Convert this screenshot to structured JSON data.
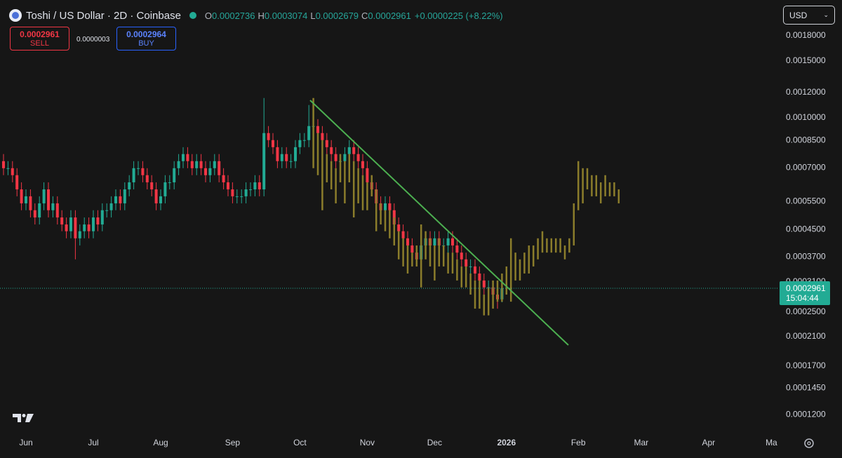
{
  "header": {
    "symbol": "Toshi / US Dollar · 2D · Coinbase",
    "o": "O",
    "h": "H",
    "l": "L",
    "c": "C",
    "change": "+0.0000225 (+8.22%)",
    "sell_price": "0.0002961",
    "sell": "SELL",
    "spread": "0.0000003",
    "buy_price": "0.0002964",
    "buy": "BUY",
    "currency": "USD",
    "countdown": "15:04:44"
  },
  "chart_data": {
    "type": "candlestick",
    "log_scale": true,
    "grid": false,
    "up_color": "#22ab94",
    "down_color": "#f23645",
    "projection_color": "#8b7d2b",
    "ylim": [
      0.000105,
      0.00232
    ],
    "yticks": [
      {
        "value": 0.0018,
        "label": "0.0018000"
      },
      {
        "value": 0.0015,
        "label": "0.0015000"
      },
      {
        "value": 0.0012,
        "label": "0.0012000"
      },
      {
        "value": 0.001,
        "label": "0.0010000"
      },
      {
        "value": 0.00085,
        "label": "0.0008500"
      },
      {
        "value": 0.0007,
        "label": "0.0007000"
      },
      {
        "value": 0.00055,
        "label": "0.0005500"
      },
      {
        "value": 0.00045,
        "label": "0.0004500"
      },
      {
        "value": 0.00037,
        "label": "0.0003700"
      },
      {
        "value": 0.00031,
        "label": "0.0003100"
      },
      {
        "value": 0.00025,
        "label": "0.0002500"
      },
      {
        "value": 0.00021,
        "label": "0.0002100"
      },
      {
        "value": 0.00017,
        "label": "0.0001700"
      },
      {
        "value": 0.000145,
        "label": "0.0001450"
      },
      {
        "value": 0.00012,
        "label": "0.0001200"
      }
    ],
    "categories": [
      null,
      null,
      null,
      null,
      null,
      "Jun",
      null,
      null,
      null,
      null,
      null,
      null,
      null,
      null,
      null,
      null,
      null,
      null,
      null,
      null,
      "Jul",
      null,
      null,
      null,
      null,
      null,
      null,
      null,
      null,
      null,
      null,
      null,
      null,
      null,
      null,
      "Aug",
      null,
      null,
      null,
      null,
      null,
      null,
      null,
      null,
      null,
      null,
      null,
      null,
      null,
      null,
      null,
      "Sep",
      null,
      null,
      null,
      null,
      null,
      null,
      null,
      null,
      null,
      null,
      null,
      null,
      null,
      null,
      "Oct",
      null,
      null,
      null,
      null,
      null,
      null,
      null,
      null,
      null,
      null,
      null,
      null,
      null,
      null,
      "Nov",
      null,
      null,
      null,
      null,
      null,
      null,
      null,
      null,
      null,
      null,
      null,
      null,
      null,
      null,
      "Dec",
      null,
      null,
      null,
      null,
      null,
      null,
      null,
      null,
      null,
      null,
      null,
      null,
      null,
      null,
      null,
      "2026",
      null,
      null,
      null,
      null,
      null,
      null,
      null,
      null,
      null,
      null,
      null,
      null,
      null,
      null,
      null,
      "Feb",
      null,
      null,
      null,
      null,
      null,
      null,
      null,
      null,
      null,
      null,
      null,
      null,
      null,
      "Mar",
      null,
      null,
      null,
      null,
      null,
      null,
      null,
      null,
      null,
      null,
      null,
      null,
      null,
      null,
      "Apr",
      null,
      null,
      null,
      null,
      null,
      null,
      null,
      null,
      null,
      null,
      null,
      null,
      null,
      "Ma",
      null
    ],
    "open": [
      0.000734,
      0.000698,
      0.000698,
      0.000664,
      0.0006,
      0.000543,
      0.000571,
      0.000517,
      0.000491,
      0.000543,
      0.0006,
      0.000517,
      0.000543,
      0.000491,
      0.000467,
      0.000445,
      0.000491,
      0.000423,
      0.000445,
      0.000467,
      0.000445,
      0.000491,
      0.000467,
      0.000517,
      0.000517,
      0.000543,
      0.000571,
      0.000543,
      0.0006,
      0.000631,
      0.000698,
      0.000698,
      0.000664,
      0.000631,
      0.0006,
      0.000543,
      0.000571,
      0.000631,
      0.000631,
      0.000698,
      0.000734,
      0.000772,
      0.000734,
      0.000698,
      0.000734,
      0.000698,
      0.000664,
      0.000698,
      0.000734,
      0.000664,
      0.000631,
      0.0006,
      0.000571,
      0.000571,
      0.000571,
      0.0006,
      0.0006,
      0.000631,
      0.0006,
      0.000897,
      0.000853,
      0.000811,
      0.000734,
      0.000772,
      0.000734,
      0.000734,
      0.000811,
      0.000853,
      0.000853,
      0.000943,
      0.000943,
      0.000897,
      0.000853,
      0.000811,
      0.000772,
      0.000734,
      0.000734,
      0.000772,
      0.000811,
      0.000772,
      0.000734,
      0.000698,
      0.000631,
      0.0006,
      0.000543,
      0.000517,
      0.000543,
      0.000517,
      0.000467,
      0.000445,
      0.000423,
      0.000402,
      0.000382,
      0.000364,
      0.000402,
      0.000423,
      0.000402,
      0.000423,
      0.000402,
      0.000402,
      0.000423,
      0.000402,
      0.000382,
      0.000364,
      0.000346,
      0.000346,
      0.000329,
      0.000313,
      0.000298,
      0.000298,
      0.000283,
      0.0002736,
      null,
      null,
      null,
      null,
      null,
      null,
      null,
      null,
      null,
      null,
      null,
      null,
      null,
      null,
      null,
      null,
      null,
      null,
      null,
      null,
      null,
      null,
      null,
      null,
      null,
      null,
      null,
      null,
      null,
      null,
      null,
      null,
      null,
      null,
      null,
      null,
      null,
      null,
      null,
      null,
      null,
      null,
      null,
      null,
      null,
      null,
      null,
      null,
      null,
      null,
      null,
      null,
      null,
      null,
      null,
      null,
      null,
      null,
      null,
      null,
      null
    ],
    "high": [
      0.000772,
      0.000734,
      0.000734,
      0.000698,
      0.000631,
      0.0006,
      0.0006,
      0.000543,
      0.000571,
      0.000631,
      0.000631,
      0.000571,
      0.000571,
      0.000517,
      0.000491,
      0.000517,
      0.000517,
      0.000467,
      0.000491,
      0.000491,
      0.000517,
      0.000517,
      0.000543,
      0.000543,
      0.000571,
      0.0006,
      0.0006,
      0.000631,
      0.000664,
      0.000734,
      0.000734,
      0.000734,
      0.000698,
      0.000664,
      0.000631,
      0.0006,
      0.000664,
      0.000664,
      0.000734,
      0.000772,
      0.000811,
      0.000811,
      0.000772,
      0.000772,
      0.000772,
      0.000734,
      0.000734,
      0.000772,
      0.000772,
      0.000698,
      0.000664,
      0.000631,
      0.0006,
      0.0006,
      0.000631,
      0.000631,
      0.000664,
      0.000664,
      0.001152,
      0.000943,
      0.000897,
      0.000853,
      0.000811,
      0.000811,
      0.000772,
      0.000853,
      0.000897,
      0.000897,
      0.001096,
      0.000991,
      0.000991,
      0.000943,
      0.000897,
      0.000853,
      0.000811,
      0.000772,
      0.000811,
      0.000853,
      0.000853,
      0.000811,
      0.000772,
      0.000734,
      0.000664,
      0.000631,
      0.000571,
      0.000571,
      0.000571,
      0.000543,
      0.000491,
      0.000467,
      0.000445,
      0.000423,
      0.000402,
      0.000423,
      0.000445,
      0.000445,
      0.000445,
      0.000445,
      0.000423,
      0.000445,
      0.000445,
      0.000423,
      0.000402,
      0.000382,
      0.000364,
      0.000364,
      0.000346,
      0.000329,
      0.000313,
      0.000313,
      0.000298,
      0.0003074,
      null,
      null,
      null,
      null,
      null,
      null,
      null,
      null,
      null,
      null,
      null,
      null,
      null,
      null,
      null,
      null,
      null,
      null,
      null,
      null,
      null,
      null,
      null,
      null,
      null,
      null,
      null,
      null,
      null,
      null,
      null,
      null,
      null,
      null,
      null,
      null,
      null,
      null,
      null,
      null,
      null,
      null,
      null,
      null,
      null,
      null,
      null,
      null,
      null,
      null,
      null,
      null,
      null,
      null,
      null,
      null,
      null,
      null,
      null,
      null,
      null
    ],
    "low": [
      0.000664,
      0.000664,
      0.000631,
      0.000571,
      0.000517,
      0.000517,
      0.000491,
      0.000467,
      0.000467,
      0.000517,
      0.000491,
      0.000491,
      0.000467,
      0.000445,
      0.000423,
      0.000423,
      0.000364,
      0.000402,
      0.000423,
      0.000423,
      0.000423,
      0.000445,
      0.000445,
      0.000491,
      0.000491,
      0.000517,
      0.000517,
      0.000517,
      0.000571,
      0.0006,
      0.000664,
      0.000631,
      0.0006,
      0.000571,
      0.000517,
      0.000517,
      0.000543,
      0.0006,
      0.0006,
      0.000664,
      0.000698,
      0.000698,
      0.000664,
      0.000664,
      0.000664,
      0.000631,
      0.000631,
      0.000664,
      0.000631,
      0.0006,
      0.000571,
      0.000543,
      0.000543,
      0.000543,
      0.000543,
      0.000571,
      0.000571,
      0.000571,
      0.000571,
      0.000811,
      0.000772,
      0.000698,
      0.000698,
      0.000698,
      0.000698,
      0.000698,
      0.000772,
      0.000811,
      0.000811,
      0.000853,
      0.000853,
      0.000811,
      0.000772,
      0.000734,
      0.000698,
      0.000698,
      0.000698,
      0.000734,
      0.000734,
      0.000698,
      0.000664,
      0.0006,
      0.000571,
      0.000517,
      0.000491,
      0.000491,
      0.000491,
      0.000445,
      0.000423,
      0.000402,
      0.000382,
      0.000364,
      0.000346,
      0.000346,
      0.000382,
      0.000382,
      0.000382,
      0.000382,
      0.000382,
      0.000382,
      0.000382,
      0.000364,
      0.000346,
      0.000329,
      0.000329,
      0.000313,
      0.000298,
      0.000283,
      0.000283,
      0.000269,
      0.000256,
      0.0002679,
      null,
      null,
      null,
      null,
      null,
      null,
      null,
      null,
      null,
      null,
      null,
      null,
      null,
      null,
      null,
      null,
      null,
      null,
      null,
      null,
      null,
      null,
      null,
      null,
      null,
      null,
      null,
      null,
      null,
      null,
      null,
      null,
      null,
      null,
      null,
      null,
      null,
      null,
      null,
      null,
      null,
      null,
      null,
      null,
      null,
      null,
      null,
      null,
      null,
      null,
      null,
      null,
      null,
      null,
      null,
      null,
      null,
      null,
      null,
      null,
      null
    ],
    "close": [
      0.000698,
      0.000698,
      0.000664,
      0.0006,
      0.000543,
      0.000571,
      0.000517,
      0.000491,
      0.000543,
      0.0006,
      0.000517,
      0.000543,
      0.000491,
      0.000467,
      0.000445,
      0.000491,
      0.000423,
      0.000445,
      0.000467,
      0.000445,
      0.000491,
      0.000467,
      0.000517,
      0.000517,
      0.000543,
      0.000571,
      0.000543,
      0.0006,
      0.000631,
      0.000698,
      0.000698,
      0.000664,
      0.000631,
      0.0006,
      0.000543,
      0.000571,
      0.000631,
      0.000631,
      0.000698,
      0.000734,
      0.000772,
      0.000734,
      0.000698,
      0.000734,
      0.000698,
      0.000664,
      0.000698,
      0.000734,
      0.000664,
      0.000631,
      0.0006,
      0.000571,
      0.000571,
      0.000571,
      0.0006,
      0.0006,
      0.000631,
      0.0006,
      0.000897,
      0.000853,
      0.000811,
      0.000734,
      0.000772,
      0.000734,
      0.000734,
      0.000811,
      0.000853,
      0.000853,
      0.000943,
      0.000943,
      0.000897,
      0.000853,
      0.000811,
      0.000772,
      0.000734,
      0.000734,
      0.000772,
      0.000811,
      0.000772,
      0.000734,
      0.000698,
      0.000631,
      0.0006,
      0.000543,
      0.000517,
      0.000543,
      0.000517,
      0.000467,
      0.000445,
      0.000423,
      0.000402,
      0.000382,
      0.000364,
      0.000402,
      0.000423,
      0.000402,
      0.000423,
      0.000402,
      0.000402,
      0.000423,
      0.000402,
      0.000382,
      0.000364,
      0.000346,
      0.000346,
      0.000329,
      0.000313,
      0.000298,
      0.000298,
      0.000283,
      0.0002736,
      0.0002961,
      null,
      null,
      null,
      null,
      null,
      null,
      null,
      null,
      null,
      null,
      null,
      null,
      null,
      null,
      null,
      null,
      null,
      null,
      null,
      null,
      null,
      null,
      null,
      null,
      null,
      null,
      null,
      null,
      null,
      null,
      null,
      null,
      null,
      null,
      null,
      null,
      null,
      null,
      null,
      null,
      null,
      null,
      null,
      null,
      null,
      null,
      null,
      null,
      null,
      null,
      null,
      null,
      null,
      null,
      null,
      null,
      null,
      null,
      null,
      null,
      null
    ],
    "projection": {
      "high": [
        null,
        null,
        null,
        null,
        null,
        null,
        null,
        null,
        null,
        null,
        null,
        null,
        null,
        null,
        null,
        null,
        null,
        null,
        null,
        null,
        null,
        null,
        null,
        null,
        null,
        null,
        null,
        null,
        null,
        null,
        null,
        null,
        null,
        null,
        null,
        null,
        null,
        null,
        null,
        null,
        null,
        null,
        null,
        null,
        null,
        null,
        null,
        null,
        null,
        null,
        null,
        null,
        null,
        null,
        null,
        null,
        null,
        null,
        null,
        null,
        null,
        null,
        null,
        null,
        null,
        null,
        null,
        null,
        null,
        0.001152,
        0.000897,
        0.000853,
        0.000772,
        0.000734,
        0.000698,
        0.000772,
        0.000734,
        0.000772,
        0.000734,
        0.000698,
        0.000664,
        0.000631,
        0.000664,
        0.0006,
        0.000543,
        0.000517,
        0.000517,
        0.000491,
        0.000445,
        0.000423,
        0.000402,
        0.000382,
        0.000402,
        0.000467,
        0.000445,
        0.000423,
        0.000402,
        0.000423,
        0.000402,
        0.000382,
        0.000382,
        0.000364,
        0.000346,
        0.000346,
        0.000329,
        0.000313,
        0.000313,
        0.000283,
        0.000298,
        0.000313,
        0.000313,
        0.000329,
        0.000346,
        0.000423,
        0.000382,
        0.000364,
        0.000382,
        0.000402,
        0.000402,
        0.000423,
        0.000445,
        0.000423,
        0.000423,
        0.000423,
        0.000423,
        0.000402,
        0.000423,
        0.000543,
        0.000734,
        0.000698,
        0.000698,
        0.000664,
        0.000664,
        0.000631,
        0.000664,
        0.000631,
        0.000631,
        0.0006,
        null,
        null,
        null,
        null,
        null,
        null,
        null,
        null,
        null,
        null,
        null,
        null,
        null,
        null,
        null,
        null,
        null,
        null,
        null,
        null,
        null,
        null,
        null,
        null,
        null,
        null,
        null,
        null,
        null,
        null,
        null,
        null,
        null,
        null,
        null
      ],
      "low": [
        null,
        null,
        null,
        null,
        null,
        null,
        null,
        null,
        null,
        null,
        null,
        null,
        null,
        null,
        null,
        null,
        null,
        null,
        null,
        null,
        null,
        null,
        null,
        null,
        null,
        null,
        null,
        null,
        null,
        null,
        null,
        null,
        null,
        null,
        null,
        null,
        null,
        null,
        null,
        null,
        null,
        null,
        null,
        null,
        null,
        null,
        null,
        null,
        null,
        null,
        null,
        null,
        null,
        null,
        null,
        null,
        null,
        null,
        null,
        null,
        null,
        null,
        null,
        null,
        null,
        null,
        null,
        null,
        null,
        0.000698,
        0.000664,
        0.000517,
        0.000631,
        0.0006,
        0.000543,
        0.000631,
        0.000543,
        0.000631,
        0.000491,
        0.000543,
        0.000517,
        0.000517,
        0.000571,
        0.000445,
        0.000467,
        0.000445,
        0.000423,
        0.000402,
        0.000364,
        0.000346,
        0.000329,
        0.000346,
        0.000346,
        0.000298,
        0.000364,
        0.000346,
        0.000313,
        0.000346,
        0.000346,
        0.000329,
        0.000329,
        0.000313,
        0.000298,
        0.000298,
        0.000283,
        0.000256,
        0.000256,
        0.000244,
        0.000244,
        0.000256,
        0.000269,
        0.000269,
        0.000283,
        0.000269,
        0.000313,
        0.000313,
        0.000329,
        0.000329,
        0.000346,
        0.000364,
        0.000382,
        0.000382,
        0.000382,
        0.000382,
        0.000382,
        0.000364,
        0.000382,
        0.000402,
        0.000517,
        0.000543,
        0.0006,
        0.000571,
        0.000571,
        0.000543,
        0.000571,
        0.000571,
        0.000571,
        0.000543,
        null,
        null,
        null,
        null,
        null,
        null,
        null,
        null,
        null,
        null,
        null,
        null,
        null,
        null,
        null,
        null,
        null,
        null,
        null,
        null,
        null,
        null,
        null,
        null,
        null,
        null,
        null,
        null,
        null,
        null,
        null,
        null,
        null,
        null,
        null
      ]
    }
  }
}
